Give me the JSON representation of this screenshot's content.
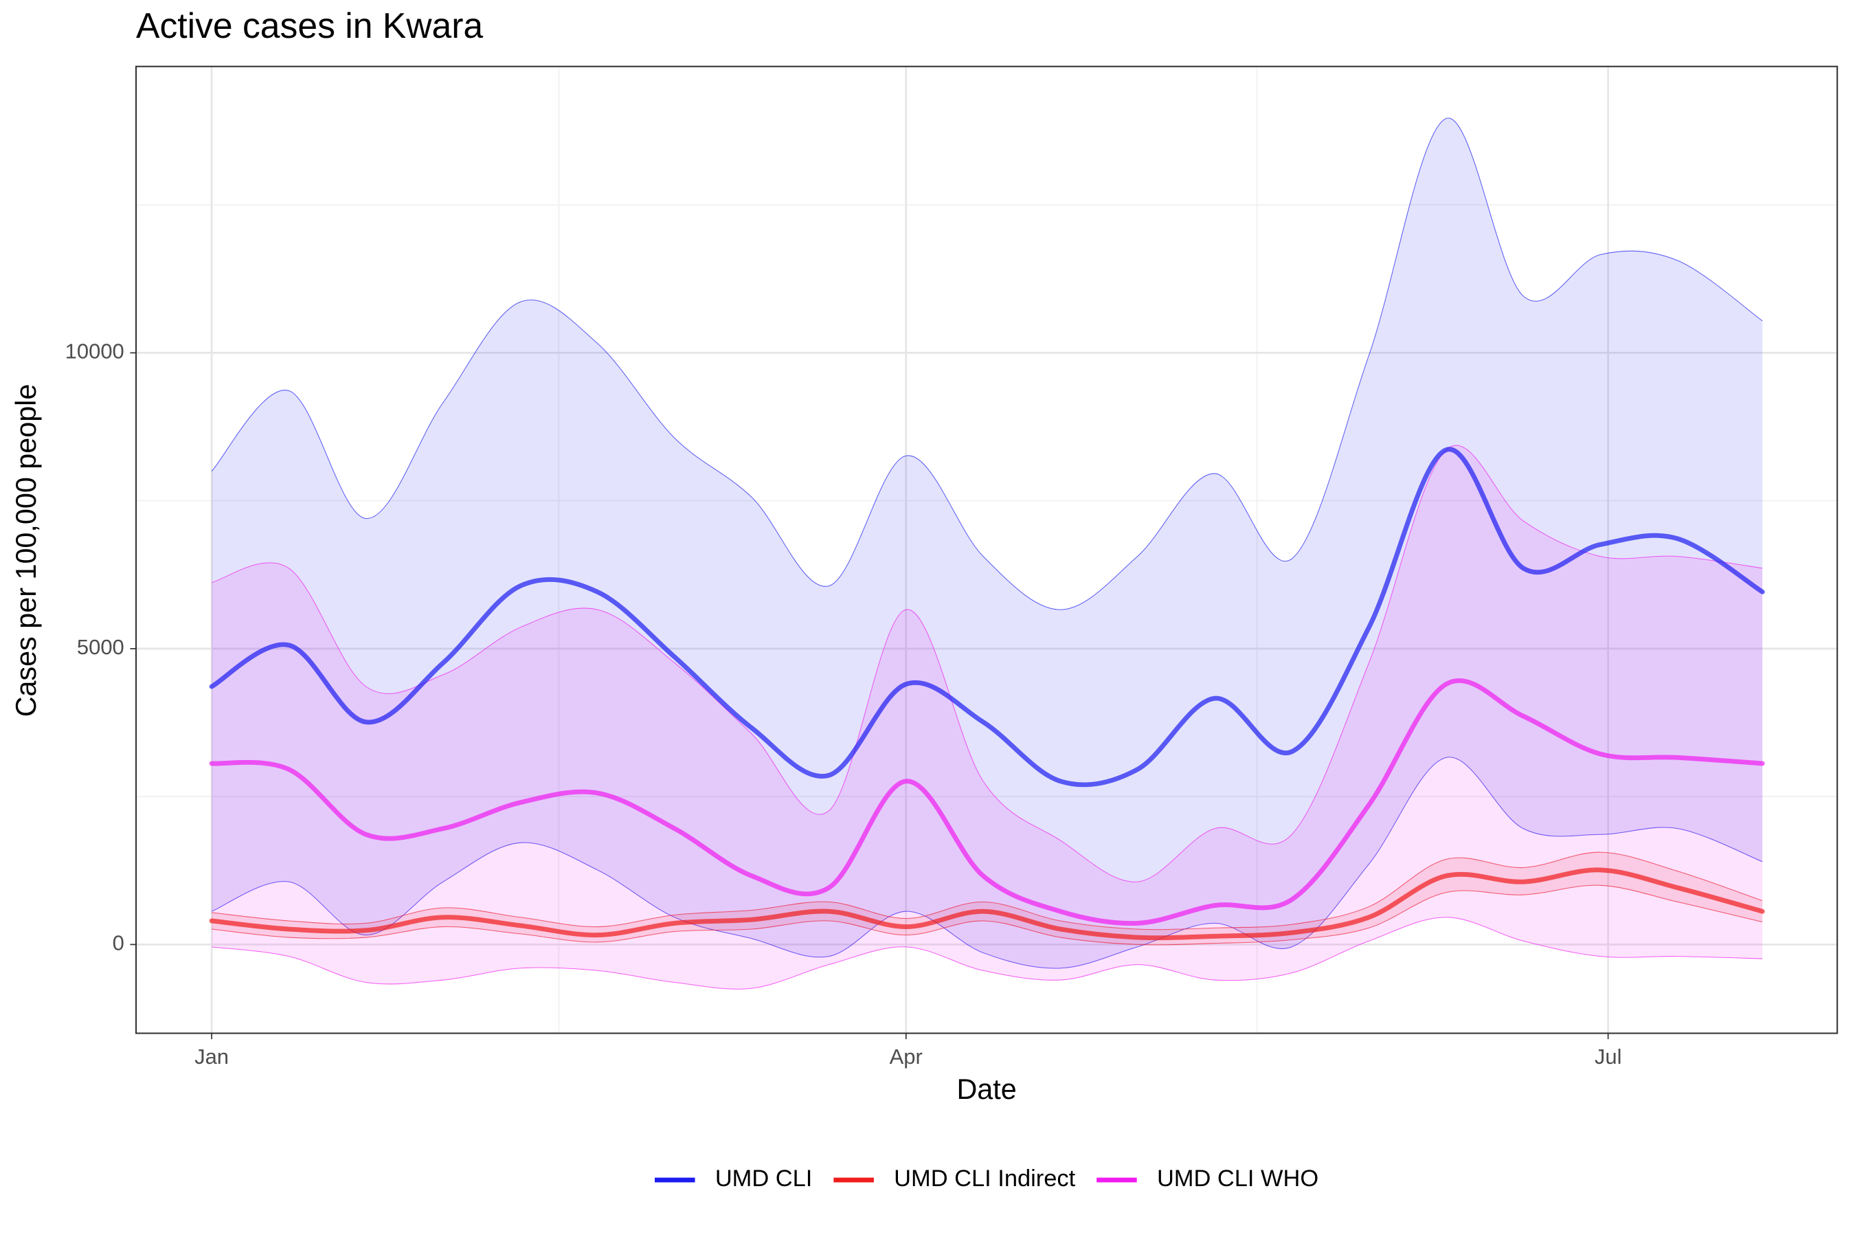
{
  "chart_data": {
    "type": "line",
    "title": "Active cases in Kwara",
    "x_label": "Date",
    "y_label": "Cases per 100,000 people",
    "x": [
      0,
      10,
      20,
      30,
      40,
      50,
      60,
      70,
      80,
      90,
      100,
      110,
      120,
      130,
      140,
      150,
      160,
      170,
      180,
      190,
      201
    ],
    "xlim": [
      -9.8,
      210.7
    ],
    "xticks": [
      {
        "value": 0,
        "label": "Jan"
      },
      {
        "value": 90,
        "label": "Apr"
      },
      {
        "value": 181,
        "label": "Jul"
      }
    ],
    "ylim": [
      -1500,
      14840
    ],
    "yticks": [
      0,
      5000,
      10000
    ],
    "grid": true,
    "legend": "bottom",
    "series": [
      {
        "name": "UMD CLI",
        "color": "#1c1cf0",
        "values": [
          4360,
          5060,
          3760,
          4760,
          6060,
          5960,
          4860,
          3660,
          2860,
          4400,
          3760,
          2760,
          2960,
          4160,
          3260,
          5360,
          8360,
          6360,
          6760,
          6860,
          5960
        ],
        "upper": [
          8000,
          9360,
          7200,
          9160,
          10860,
          10160,
          8560,
          7560,
          6060,
          8260,
          6560,
          5660,
          6560,
          7960,
          6520,
          9960,
          13960,
          10960,
          11660,
          11560,
          10540
        ],
        "lower": [
          560,
          1060,
          160,
          1060,
          1720,
          1260,
          460,
          100,
          -200,
          560,
          -140,
          -400,
          -40,
          360,
          -40,
          1360,
          3160,
          1960,
          1860,
          1960,
          1400
        ]
      },
      {
        "name": "UMD CLI Indirect",
        "color": "#f01c1c",
        "values": [
          400,
          260,
          240,
          460,
          320,
          160,
          360,
          420,
          560,
          300,
          560,
          260,
          120,
          140,
          200,
          460,
          1160,
          1060,
          1260,
          960,
          560
        ],
        "upper": [
          540,
          400,
          360,
          620,
          460,
          300,
          500,
          580,
          720,
          440,
          720,
          400,
          260,
          280,
          340,
          640,
          1440,
          1300,
          1560,
          1240,
          740
        ],
        "lower": [
          260,
          120,
          120,
          300,
          180,
          40,
          220,
          260,
          400,
          160,
          400,
          120,
          0,
          20,
          80,
          280,
          880,
          840,
          1000,
          720,
          380
        ]
      },
      {
        "name": "UMD CLI WHO",
        "color": "#f01cf0",
        "values": [
          3060,
          2960,
          1860,
          1960,
          2400,
          2560,
          1960,
          1160,
          960,
          2760,
          1160,
          560,
          360,
          660,
          760,
          2360,
          4400,
          3860,
          3220,
          3160,
          3060
        ],
        "upper": [
          6120,
          6360,
          4360,
          4560,
          5360,
          5660,
          4760,
          3560,
          2260,
          5660,
          2760,
          1760,
          1060,
          1960,
          1860,
          4760,
          8360,
          7160,
          6560,
          6560,
          6360
        ],
        "lower": [
          -40,
          -200,
          -640,
          -600,
          -400,
          -440,
          -640,
          -740,
          -340,
          -40,
          -440,
          -600,
          -340,
          -600,
          -480,
          60,
          460,
          60,
          -200,
          -200,
          -240
        ]
      }
    ]
  }
}
